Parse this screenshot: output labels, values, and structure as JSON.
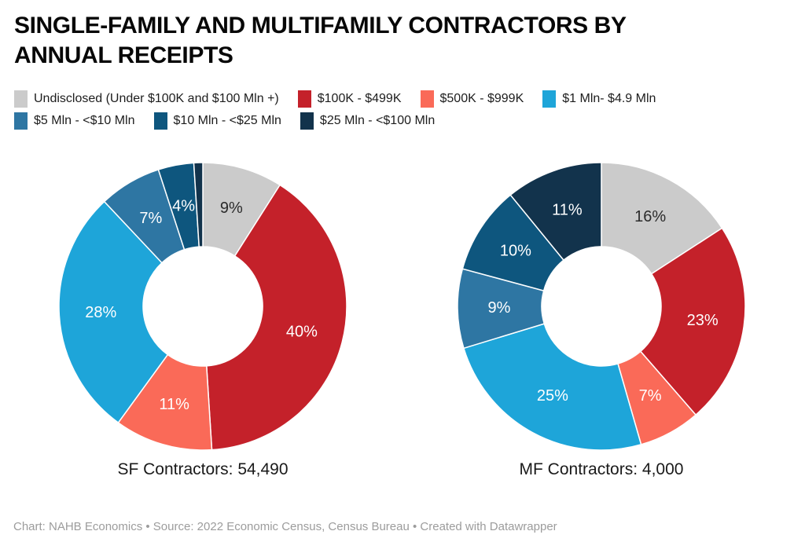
{
  "header": {
    "title": "SINGLE-FAMILY AND MULTIFAMILY CONTRACTORS BY\nANNUAL RECEIPTS"
  },
  "legend": {
    "items": [
      {
        "label": "Undisclosed (Under $100K and $100 Mln +)",
        "color": "#cbcbcb"
      },
      {
        "label": "$100K - $499K",
        "color": "#c4212a"
      },
      {
        "label": "$500K - $999K",
        "color": "#fa6a58"
      },
      {
        "label": "$1 Mln- $4.9 Mln",
        "color": "#1ea5d9"
      },
      {
        "label": "$5 Mln - <$10 Mln",
        "color": "#2e76a3"
      },
      {
        "label": "$10 Mln - <$25 Mln",
        "color": "#0e567e"
      },
      {
        "label": "$25 Mln - <$100 Mln",
        "color": "#12334c"
      }
    ]
  },
  "chart_data": [
    {
      "type": "pie",
      "donut": true,
      "title": "SF Contractors: 54,490",
      "categories": [
        "Undisclosed (Under $100K and $100 Mln +)",
        "$100K - $499K",
        "$500K - $999K",
        "$1 Mln- $4.9 Mln",
        "$5 Mln - <$10 Mln",
        "$10 Mln - <$25 Mln",
        "$25 Mln - <$100 Mln"
      ],
      "values": [
        9,
        40,
        11,
        28,
        7,
        4,
        1
      ],
      "data_labels": [
        "9%",
        "40%",
        "11%",
        "28%",
        "7%",
        "4%",
        ""
      ],
      "colors": [
        "#cbcbcb",
        "#c4212a",
        "#fa6a58",
        "#1ea5d9",
        "#2e76a3",
        "#0e567e",
        "#12334c"
      ],
      "label_colors": [
        "#2b2b2b",
        "#ffffff",
        "#ffffff",
        "#ffffff",
        "#ffffff",
        "#ffffff",
        "#ffffff"
      ],
      "legend_position": "top",
      "start_angle_deg": 0,
      "direction": "clockwise"
    },
    {
      "type": "pie",
      "donut": true,
      "title": "MF Contractors: 4,000",
      "categories": [
        "Undisclosed (Under $100K and $100 Mln +)",
        "$100K - $499K",
        "$500K - $999K",
        "$1 Mln- $4.9 Mln",
        "$5 Mln - <$10 Mln",
        "$10 Mln - <$25 Mln",
        "$25 Mln - <$100 Mln"
      ],
      "values": [
        16,
        23,
        7,
        25,
        9,
        10,
        11
      ],
      "data_labels": [
        "16%",
        "23%",
        "7%",
        "25%",
        "9%",
        "10%",
        "11%"
      ],
      "colors": [
        "#cbcbcb",
        "#c4212a",
        "#fa6a58",
        "#1ea5d9",
        "#2e76a3",
        "#0e567e",
        "#12334c"
      ],
      "label_colors": [
        "#2b2b2b",
        "#ffffff",
        "#ffffff",
        "#ffffff",
        "#ffffff",
        "#ffffff",
        "#ffffff"
      ],
      "legend_position": "top",
      "start_angle_deg": 0,
      "direction": "clockwise"
    }
  ],
  "footer": {
    "credit": "Chart: NAHB Economics • Source: 2022 Economic Census, Census Bureau • Created with Datawrapper"
  }
}
